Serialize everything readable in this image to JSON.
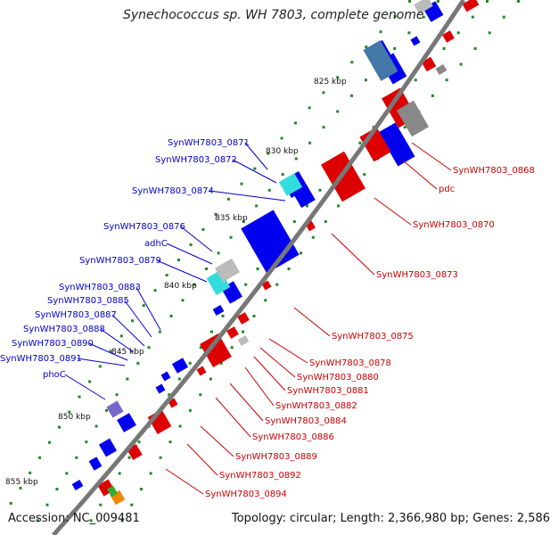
{
  "title": "Synechococcus sp. WH 7803, complete genome",
  "accession": "Accession: NC_009481",
  "summary": "Topology: circular; Length: 2,366,980 bp; Genes: 2,586",
  "colors": {
    "backbone": "#777777",
    "forward_cds": "#dd0000",
    "reverse_cds": "#0000ee",
    "left_label": "#0000cc",
    "right_label": "#cc0000",
    "tick": "#228822"
  },
  "ticks": [
    "825 kbp",
    "830 kbp",
    "835 kbp",
    "840 kbp",
    "845 kbp",
    "850 kbp",
    "855 kbp"
  ],
  "left_labels": [
    "SynWH7803_0871",
    "SynWH7803_0872",
    "SynWH7803_0874",
    "SynWH7803_0876",
    "adhC",
    "SynWH7803_0879",
    "SynWH7803_0883",
    "SynWH7803_0885",
    "SynWH7803_0887",
    "SynWH7803_0888",
    "SynWH7803_0890",
    "SynWH7803_0891",
    "phoC"
  ],
  "right_labels": [
    "SynWH7803_0868",
    "pdc",
    "SynWH7803_0870",
    "SynWH7803_0873",
    "SynWH7803_0875",
    "SynWH7803_0878",
    "SynWH7803_0880",
    "SynWH7803_0881",
    "SynWH7803_0882",
    "SynWH7803_0884",
    "SynWH7803_0886",
    "SynWH7803_0889",
    "SynWH7803_0892",
    "SynWH7803_0894"
  ]
}
